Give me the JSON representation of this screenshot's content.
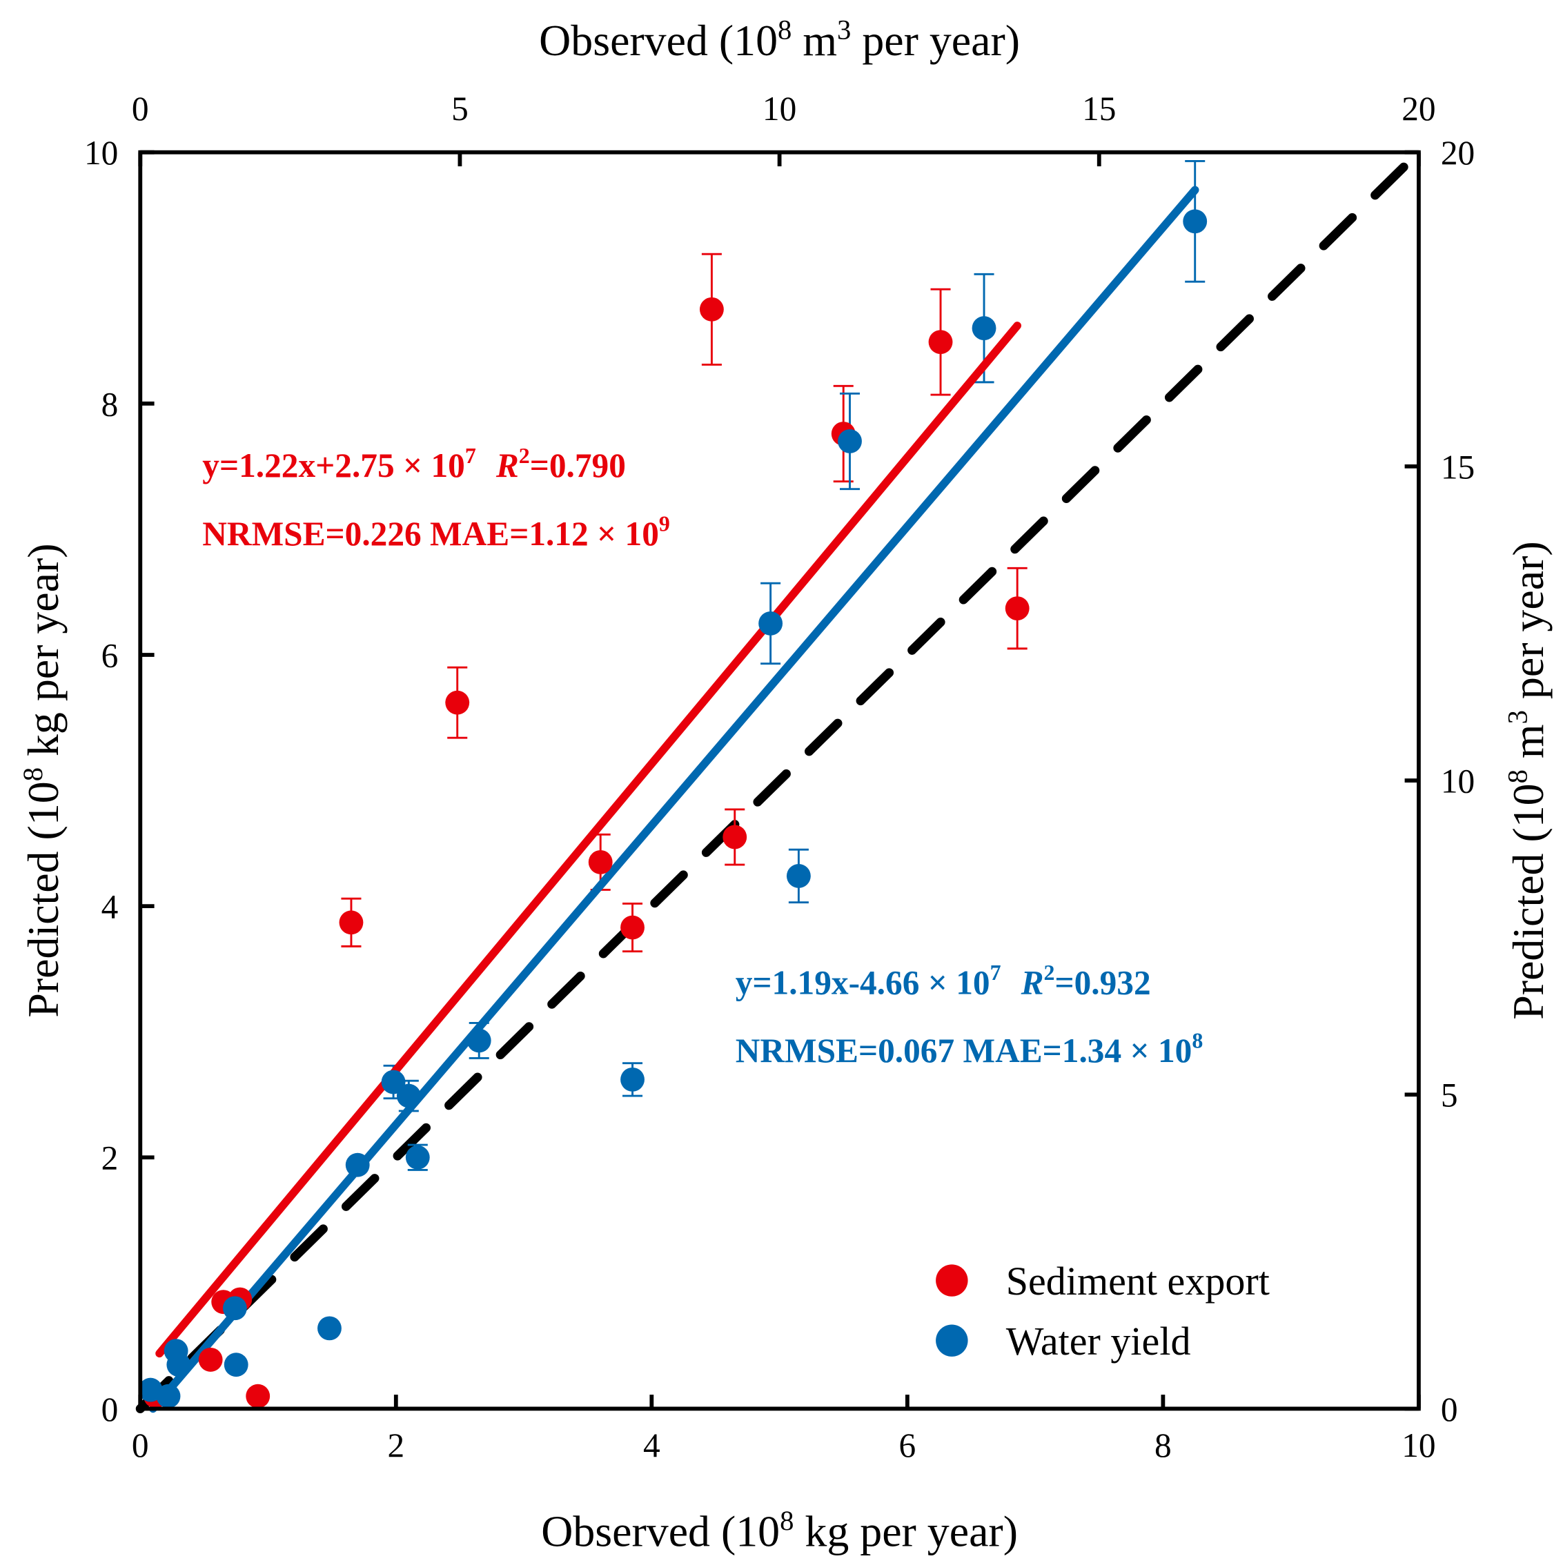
{
  "chart_data": {
    "type": "scatter",
    "top_xlabel": "Observed (10^8 m^3 per year)",
    "bottom_xlabel": "Observed (10^8 kg per year)",
    "left_ylabel": "Predicted (10^8 kg per year)",
    "right_ylabel": "Predicted (10^8 m^3 per year)",
    "label_parts": {
      "top": [
        "Observed (10",
        "8",
        " m",
        "3",
        " per year)"
      ],
      "bottom": [
        "Observed (10",
        "8",
        " kg per year)"
      ],
      "left": [
        "Predicted (10",
        "8",
        " kg per year)"
      ],
      "right": [
        "Predicted (10",
        "8",
        " m",
        "3",
        " per year)"
      ]
    },
    "bottom_axis": {
      "range": [
        0,
        10
      ],
      "ticks": [
        "0",
        "2",
        "4",
        "6",
        "8",
        "10"
      ]
    },
    "left_axis": {
      "range": [
        0,
        10
      ],
      "ticks": [
        "0",
        "2",
        "4",
        "6",
        "8",
        "10"
      ]
    },
    "top_axis": {
      "range": [
        0,
        20
      ],
      "ticks": [
        "0",
        "5",
        "10",
        "15",
        "20"
      ]
    },
    "right_axis": {
      "range": [
        0,
        20
      ],
      "ticks": [
        "0",
        "5",
        "10",
        "15",
        "20"
      ]
    },
    "legend": {
      "position": "bottom-right",
      "entries": [
        "Sediment export",
        "Water yield"
      ]
    },
    "reference_line": {
      "style": "dashed",
      "color": "#000000",
      "from": [
        0,
        0
      ],
      "to": [
        10,
        10
      ]
    },
    "series": [
      {
        "name": "Sediment export",
        "color": "#e8000b",
        "points": [
          {
            "x": 0.12,
            "y": 0.1
          },
          {
            "x": 0.55,
            "y": 0.39
          },
          {
            "x": 0.65,
            "y": 0.85
          },
          {
            "x": 0.78,
            "y": 0.87
          },
          {
            "x": 0.92,
            "y": 0.1
          },
          {
            "x": 1.65,
            "y": 3.87,
            "err": 0.19
          },
          {
            "x": 2.48,
            "y": 5.62,
            "err": 0.28
          },
          {
            "x": 3.6,
            "y": 4.35,
            "err": 0.22
          },
          {
            "x": 3.85,
            "y": 3.83,
            "err": 0.19
          },
          {
            "x": 4.47,
            "y": 8.75,
            "err": 0.44
          },
          {
            "x": 4.65,
            "y": 4.55,
            "err": 0.22
          },
          {
            "x": 5.5,
            "y": 7.76,
            "err": 0.38
          },
          {
            "x": 6.26,
            "y": 8.49,
            "err": 0.42
          },
          {
            "x": 6.86,
            "y": 6.37,
            "err": 0.32
          }
        ],
        "fit": {
          "from": [
            0.15,
            0.44
          ],
          "to": [
            6.86,
            8.62
          ]
        },
        "annotation": {
          "line1": {
            "a": "y=1.22x+2.75 × 10",
            "exp": "7",
            "r": "R",
            "r2": "2",
            "b": "=0.790"
          },
          "line2": {
            "a": "NRMSE=0.226  MAE=1.12 × 10",
            "exp": "9"
          }
        }
      },
      {
        "name": "Water yield",
        "color": "#0068b0",
        "points": [
          {
            "x": 0.08,
            "y": 0.15
          },
          {
            "x": 0.22,
            "y": 0.1
          },
          {
            "x": 0.28,
            "y": 0.46
          },
          {
            "x": 0.3,
            "y": 0.35
          },
          {
            "x": 0.74,
            "y": 0.8
          },
          {
            "x": 0.75,
            "y": 0.35
          },
          {
            "x": 1.48,
            "y": 0.64
          },
          {
            "x": 1.7,
            "y": 1.94
          },
          {
            "x": 1.98,
            "y": 2.6,
            "err": 0.13
          },
          {
            "x": 2.1,
            "y": 2.49,
            "err": 0.12
          },
          {
            "x": 2.17,
            "y": 2.0,
            "err": 0.1
          },
          {
            "x": 2.65,
            "y": 2.93,
            "err": 0.14
          },
          {
            "x": 3.85,
            "y": 2.62,
            "err": 0.13
          },
          {
            "x": 4.93,
            "y": 6.25,
            "err": 0.32
          },
          {
            "x": 5.15,
            "y": 4.24,
            "err": 0.21
          },
          {
            "x": 5.55,
            "y": 7.7,
            "err": 0.38
          },
          {
            "x": 6.6,
            "y": 8.6,
            "err": 0.43
          },
          {
            "x": 8.25,
            "y": 9.45,
            "err": 0.48
          }
        ],
        "fit": {
          "from": [
            0.1,
            0.0
          ],
          "to": [
            8.25,
            9.7
          ]
        },
        "annotation": {
          "line1": {
            "a": "y=1.19x-4.66 × 10",
            "exp": "7",
            "r": "R",
            "r2": "2",
            "b": "=0.932"
          },
          "line2": {
            "a": "NRMSE=0.067  MAE=1.34 × 10",
            "exp": "8"
          }
        }
      }
    ]
  }
}
